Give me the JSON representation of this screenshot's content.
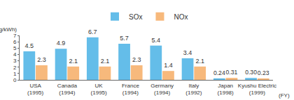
{
  "chart_data": {
    "type": "bar",
    "y_label": "(g/kWh)",
    "x_label": "(FY)",
    "categories": [
      "USA\n(1995)",
      "Canada\n(1994)",
      "UK\n(1995)",
      "France\n(1994)",
      "Germany\n(1994)",
      "Italy\n(1992)",
      "Japan\n(1998)",
      "Kyushu Electric\n(1999)"
    ],
    "series": [
      {
        "name": "SOx",
        "color": "#64bde9",
        "values": [
          4.5,
          4.9,
          6.7,
          5.7,
          5.4,
          3.4,
          0.24,
          0.3
        ],
        "value_labels": [
          "4.5",
          "4.9",
          "6.7",
          "5.7",
          "5.4",
          "3.4",
          "0.24",
          "0.30"
        ]
      },
      {
        "name": "NOx",
        "color": "#f7b97c",
        "values": [
          2.3,
          2.1,
          2.1,
          2.3,
          1.4,
          2.1,
          0.31,
          0.23
        ]
      }
    ],
    "ylim": [
      0,
      7
    ],
    "yticks": [
      0,
      1,
      2,
      3,
      4,
      5,
      6,
      7
    ],
    "grid": false,
    "legend": "top",
    "data_labels": true
  }
}
